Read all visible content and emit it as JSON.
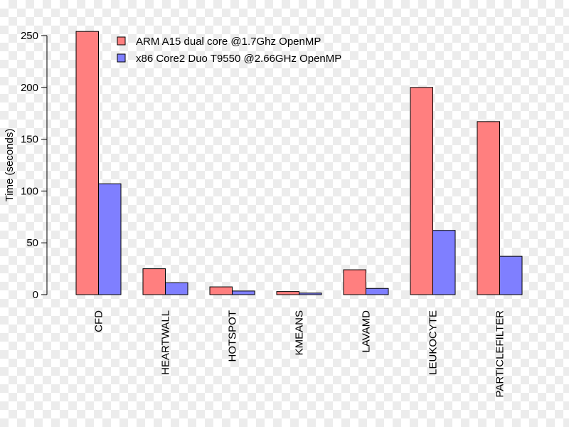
{
  "chart_data": {
    "type": "bar",
    "title": "",
    "xlabel": "",
    "ylabel": "Time (seconds)",
    "ylim": [
      0,
      250
    ],
    "yticks": [
      0,
      50,
      100,
      150,
      200,
      250
    ],
    "categories": [
      "CFD",
      "HEARTWALL",
      "HOTSPOT",
      "KMEANS",
      "LAVAMD",
      "LEUKOCYTE",
      "PARTICLEFILTER"
    ],
    "series": [
      {
        "name": "ARM A15 dual core @1.7Ghz OpenMP",
        "color": "#ff7f7f",
        "values": [
          254,
          25,
          7.5,
          3,
          24,
          200,
          167
        ]
      },
      {
        "name": "x86 Core2 Duo T9550 @2.66GHz OpenMP",
        "color": "#7f7fff",
        "values": [
          107,
          11.5,
          3.5,
          1.5,
          6,
          62,
          37
        ]
      }
    ],
    "legend_position": "top-left",
    "grid": false
  }
}
